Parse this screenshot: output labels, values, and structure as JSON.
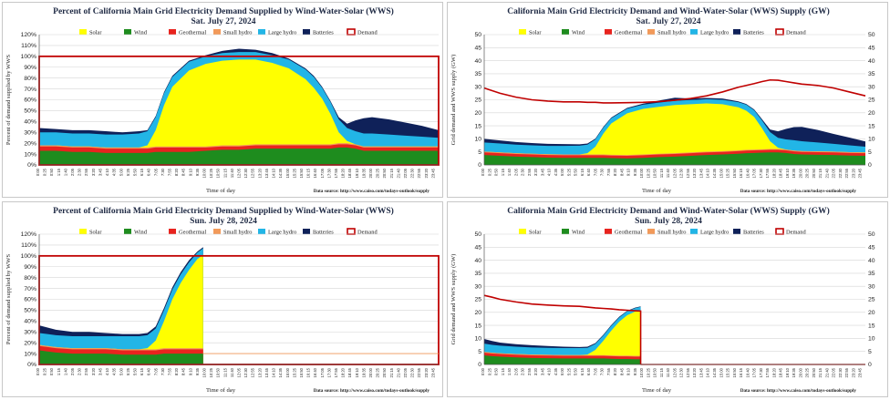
{
  "series_info": [
    {
      "key": "solar",
      "name": "Solar",
      "color": "#ffff00"
    },
    {
      "key": "wind",
      "name": "Wind",
      "color": "#1e8c1e"
    },
    {
      "key": "geothermal",
      "name": "Geothermal",
      "color": "#e8231e"
    },
    {
      "key": "small_hydro",
      "name": "Small hydro",
      "color": "#f29a5a"
    },
    {
      "key": "large_hydro",
      "name": "Large hydro",
      "color": "#22b5e6"
    },
    {
      "key": "batteries",
      "name": "Batteries",
      "color": "#0f2159"
    },
    {
      "key": "demand",
      "name": "Demand",
      "color": "#c00000"
    }
  ],
  "chart_data": [
    {
      "type": "area",
      "title": "Percent of California Main Grid Electricity Demand Supplied by Wind-Water-Solar (WWS)",
      "subtitle": "Sat. July 27, 2024",
      "xlabel": "Time of day",
      "ylabel": "Percent of demand supplied by WWS",
      "source": "Data source: http://www.caiso.com/todays-outlook/supply",
      "unit": "percent",
      "ylim": [
        0,
        120
      ],
      "yticks": [
        0,
        10,
        20,
        30,
        40,
        50,
        60,
        70,
        80,
        90,
        100,
        110,
        120
      ],
      "ytick_suffix": "%",
      "day_fraction_reported": 1.0,
      "x": [
        0,
        1,
        2,
        3,
        4,
        5,
        6,
        6.5,
        7,
        7.5,
        8,
        9,
        10,
        11,
        12,
        13,
        14,
        15,
        16,
        16.5,
        17,
        17.5,
        18,
        18.5,
        19,
        19.5,
        20,
        21,
        22,
        23,
        24
      ],
      "stacks": {
        "solar": [
          0,
          0,
          0,
          0,
          0,
          0,
          0,
          2,
          15,
          38,
          55,
          70,
          76,
          78,
          79,
          78,
          75,
          70,
          60,
          52,
          42,
          28,
          10,
          2,
          0,
          0,
          0,
          0,
          0,
          0,
          0
        ],
        "wind": [
          13,
          13,
          12,
          12,
          11,
          11,
          11,
          11,
          12,
          12,
          12,
          12,
          13,
          14,
          14,
          15,
          15,
          15,
          15,
          15,
          15,
          15,
          16,
          16,
          15,
          13,
          13,
          13,
          13,
          13,
          13
        ],
        "geothermal": [
          4,
          4,
          4,
          4,
          4,
          4,
          4,
          4,
          4,
          4,
          4,
          4,
          3,
          3,
          3,
          3,
          3,
          3,
          3,
          3,
          3,
          3,
          3,
          3,
          3,
          3,
          3,
          3,
          3,
          3,
          3
        ],
        "small_hydro": [
          1,
          1,
          1,
          1,
          1,
          1,
          1,
          1,
          1,
          1,
          1,
          1,
          1,
          1,
          1,
          1,
          1,
          1,
          1,
          1,
          1,
          1,
          1,
          1,
          1,
          1,
          1,
          1,
          1,
          1,
          1
        ],
        "large_hydro": [
          12,
          12,
          12,
          12,
          12,
          12,
          13,
          13,
          12,
          11,
          9,
          8,
          7,
          7,
          7,
          7,
          7,
          8,
          9,
          10,
          10,
          11,
          12,
          12,
          12,
          12,
          12,
          11,
          10,
          9,
          8
        ],
        "batteries": [
          4,
          3,
          3,
          3,
          3,
          2,
          2,
          1,
          1,
          1,
          1,
          1,
          1,
          2,
          3,
          2,
          2,
          1,
          1,
          1,
          1,
          1,
          2,
          4,
          10,
          14,
          15,
          14,
          12,
          10,
          7
        ]
      },
      "demand": [
        100,
        100,
        100,
        100,
        100,
        100,
        100,
        100,
        100,
        100,
        100,
        100,
        100,
        100,
        100,
        100,
        100,
        100,
        100,
        100,
        100,
        100,
        100,
        100,
        100,
        100,
        100,
        100,
        100,
        100,
        100
      ]
    },
    {
      "type": "area",
      "title": "California Main Grid Electricity Demand and Wind-Water-Solar (WWS) Supply (GW)",
      "subtitle": "Sat. July 27, 2024",
      "xlabel": "Time of day",
      "ylabel": "Grid demand and WWS supply (GW)",
      "source": "Data source: http://www.caiso.com/todays-outlook/supply",
      "unit": "GW",
      "ylim": [
        0,
        50
      ],
      "yticks": [
        0,
        5,
        10,
        15,
        20,
        25,
        30,
        35,
        40,
        45,
        50
      ],
      "ytick_suffix": "",
      "day_fraction_reported": 1.0,
      "x": [
        0,
        1,
        2,
        3,
        4,
        5,
        6,
        6.5,
        7,
        7.5,
        8,
        9,
        10,
        11,
        12,
        13,
        14,
        15,
        16,
        16.5,
        17,
        17.5,
        18,
        18.5,
        19,
        19.5,
        20,
        21,
        22,
        23,
        24
      ],
      "stacks": {
        "solar": [
          0,
          0,
          0,
          0,
          0,
          0,
          0,
          0.5,
          3,
          8,
          12,
          16,
          17.5,
          18,
          18.5,
          18.5,
          18.5,
          18,
          16.5,
          15,
          12.5,
          8,
          3,
          0.5,
          0,
          0,
          0,
          0,
          0,
          0,
          0
        ],
        "wind": [
          3.8,
          3.5,
          3.2,
          3.0,
          2.8,
          2.7,
          2.7,
          2.7,
          2.7,
          2.7,
          2.6,
          2.5,
          2.7,
          3.0,
          3.2,
          3.5,
          3.8,
          4.0,
          4.3,
          4.5,
          4.6,
          4.7,
          4.8,
          4.8,
          4.6,
          4.2,
          4.0,
          3.9,
          3.8,
          3.6,
          3.5
        ],
        "geothermal": [
          1.0,
          1.0,
          1.0,
          1.0,
          1.0,
          1.0,
          1.0,
          1.0,
          1.0,
          1.0,
          1.0,
          1.0,
          1.0,
          1.0,
          1.0,
          1.0,
          1.0,
          1.0,
          1.0,
          1.0,
          1.0,
          1.0,
          1.0,
          1.0,
          1.0,
          1.0,
          1.0,
          1.0,
          1.0,
          1.0,
          1.0
        ],
        "small_hydro": [
          0.3,
          0.3,
          0.3,
          0.3,
          0.3,
          0.3,
          0.3,
          0.3,
          0.3,
          0.3,
          0.3,
          0.3,
          0.3,
          0.3,
          0.3,
          0.3,
          0.3,
          0.3,
          0.3,
          0.3,
          0.3,
          0.3,
          0.3,
          0.3,
          0.3,
          0.3,
          0.3,
          0.3,
          0.3,
          0.3,
          0.3
        ],
        "large_hydro": [
          3.5,
          3.4,
          3.3,
          3.2,
          3.2,
          3.3,
          3.4,
          3.3,
          2.8,
          2.3,
          2.0,
          1.8,
          1.6,
          1.6,
          1.6,
          1.6,
          1.6,
          1.7,
          2.0,
          2.3,
          2.6,
          3.0,
          3.5,
          3.8,
          3.9,
          4.0,
          3.8,
          3.4,
          3.0,
          2.6,
          2.2
        ],
        "batteries": [
          1.4,
          1.2,
          1.0,
          0.9,
          0.8,
          0.7,
          0.5,
          0.4,
          0.3,
          0.3,
          0.3,
          0.3,
          0.4,
          0.8,
          1.2,
          0.6,
          0.5,
          0.5,
          0.3,
          0.3,
          0.3,
          0.5,
          1.0,
          2.5,
          4.0,
          5.0,
          5.5,
          4.8,
          3.8,
          3.0,
          2.0
        ]
      },
      "demand": [
        29.5,
        27.5,
        26,
        25,
        24.5,
        24.2,
        24.2,
        24,
        24,
        23.8,
        23.8,
        23.9,
        24,
        24.3,
        24.8,
        25.5,
        26.5,
        28,
        29.8,
        30.5,
        31.2,
        32,
        32.6,
        32.5,
        32,
        31.5,
        31,
        30.5,
        29.5,
        28,
        26.5
      ]
    },
    {
      "type": "area",
      "title": "Percent of California Main Grid Electricity Demand Supplied by Wind-Water-Solar (WWS)",
      "subtitle": "Sun. July 28, 2024",
      "xlabel": "Time of day",
      "ylabel": "Percent of demand supplied by WWS",
      "source": "Data source: http://www.caiso.com/todays-outlook/supply",
      "unit": "percent",
      "ylim": [
        0,
        120
      ],
      "yticks": [
        0,
        10,
        20,
        30,
        40,
        50,
        60,
        70,
        80,
        90,
        100,
        110,
        120
      ],
      "ytick_suffix": "%",
      "day_fraction_reported": 0.41,
      "x": [
        0,
        0.5,
        1,
        2,
        3,
        4,
        5,
        6,
        6.5,
        7,
        7.5,
        8,
        8.5,
        9,
        9.5,
        9.85
      ],
      "stacks": {
        "solar": [
          0,
          0,
          0,
          0,
          0,
          0,
          0,
          0,
          1,
          8,
          25,
          45,
          60,
          72,
          82,
          86
        ],
        "wind": [
          13,
          12,
          11,
          10,
          10,
          10,
          9,
          9,
          9,
          9,
          10,
          10,
          10,
          10,
          10,
          10
        ],
        "geothermal": [
          4,
          4,
          4,
          4,
          4,
          4,
          4,
          4,
          4,
          4,
          4,
          4,
          4,
          4,
          4,
          4
        ],
        "small_hydro": [
          1,
          1,
          1,
          1,
          1,
          1,
          1,
          1,
          1,
          1,
          1,
          1,
          1,
          1,
          1,
          1
        ],
        "large_hydro": [
          11,
          11,
          11,
          11,
          11,
          11,
          12,
          12,
          12,
          11,
          10,
          9,
          8,
          7,
          6,
          6
        ],
        "batteries": [
          7,
          6,
          5,
          4,
          4,
          3,
          2,
          2,
          2,
          2,
          2,
          2,
          2,
          2,
          1,
          1
        ]
      },
      "demand": [
        100,
        100,
        100,
        100,
        100,
        100,
        100,
        100,
        100,
        100,
        100,
        100,
        100,
        100,
        100,
        100
      ]
    },
    {
      "type": "area",
      "title": "California Main Grid Electricity Demand and Wind-Water-Solar (WWS) Supply (GW)",
      "subtitle": "Sun. July 28, 2024",
      "xlabel": "Time of day",
      "ylabel": "Grid demand and WWS supply (GW)",
      "source": "Data source: http://www.caiso.com/todays-outlook/supply",
      "unit": "GW",
      "ylim": [
        0,
        50
      ],
      "yticks": [
        0,
        5,
        10,
        15,
        20,
        25,
        30,
        35,
        40,
        45,
        50
      ],
      "ytick_suffix": "",
      "day_fraction_reported": 0.41,
      "x": [
        0,
        0.5,
        1,
        2,
        3,
        4,
        5,
        6,
        6.5,
        7,
        7.5,
        8,
        8.5,
        9,
        9.5,
        9.85
      ],
      "stacks": {
        "solar": [
          0,
          0,
          0,
          0,
          0,
          0,
          0,
          0,
          0.2,
          2,
          5.5,
          9.5,
          13,
          15.5,
          17,
          17.5
        ],
        "wind": [
          3.5,
          3.2,
          3.0,
          2.7,
          2.5,
          2.4,
          2.3,
          2.3,
          2.3,
          2.3,
          2.3,
          2.2,
          2.1,
          2.1,
          2.0,
          2.0
        ],
        "geothermal": [
          1.0,
          1.0,
          1.0,
          1.0,
          1.0,
          1.0,
          1.0,
          1.0,
          1.0,
          1.0,
          1.0,
          1.0,
          1.0,
          1.0,
          1.0,
          1.0
        ],
        "small_hydro": [
          0.3,
          0.3,
          0.3,
          0.3,
          0.3,
          0.3,
          0.3,
          0.3,
          0.3,
          0.3,
          0.3,
          0.3,
          0.3,
          0.3,
          0.3,
          0.3
        ],
        "large_hydro": [
          3.2,
          3.0,
          2.9,
          2.8,
          2.7,
          2.7,
          2.7,
          2.7,
          2.6,
          2.3,
          2.0,
          1.8,
          1.6,
          1.5,
          1.3,
          1.3
        ],
        "batteries": [
          1.8,
          1.5,
          1.2,
          1.0,
          0.9,
          0.7,
          0.5,
          0.4,
          0.4,
          0.3,
          0.3,
          0.3,
          0.3,
          0.2,
          0.2,
          0.2
        ]
      },
      "demand": [
        26.5,
        25.8,
        25,
        24,
        23.2,
        22.8,
        22.5,
        22.3,
        22,
        21.7,
        21.5,
        21.3,
        21,
        20.8,
        20.6,
        20.5
      ]
    }
  ]
}
